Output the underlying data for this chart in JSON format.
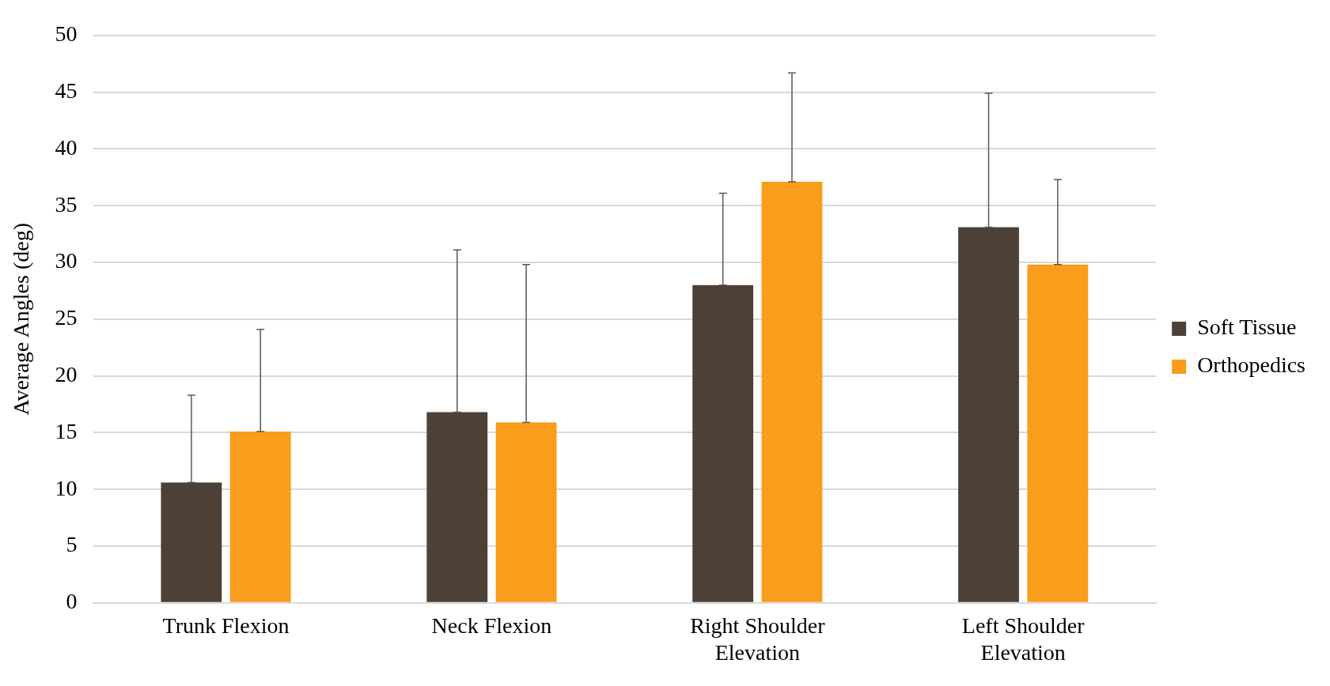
{
  "chart_data": {
    "type": "bar",
    "ylabel": "Average Angles (deg)",
    "categories": [
      "Trunk Flexion",
      "Neck Flexion",
      "Right Shoulder Elevation",
      "Left Shoulder Elevation"
    ],
    "series": [
      {
        "name": "Soft Tissue",
        "color": "#4d4037",
        "values": [
          10.6,
          16.8,
          28.0,
          33.1
        ],
        "errors": [
          [
            10.6,
            18.3
          ],
          [
            16.8,
            31.1
          ],
          [
            28.0,
            36.1
          ],
          [
            33.1,
            44.9
          ]
        ]
      },
      {
        "name": "Orthopedics",
        "color": "#f99d1c",
        "values": [
          15.1,
          15.9,
          37.1,
          29.8
        ],
        "errors": [
          [
            15.1,
            24.1
          ],
          [
            15.9,
            29.8
          ],
          [
            37.1,
            46.7
          ],
          [
            29.8,
            37.3
          ]
        ]
      }
    ],
    "ylim": [
      0,
      50
    ],
    "yticks": [
      0,
      5,
      10,
      15,
      20,
      25,
      30,
      35,
      40,
      45,
      50
    ],
    "grid": "y",
    "legend": "right"
  }
}
